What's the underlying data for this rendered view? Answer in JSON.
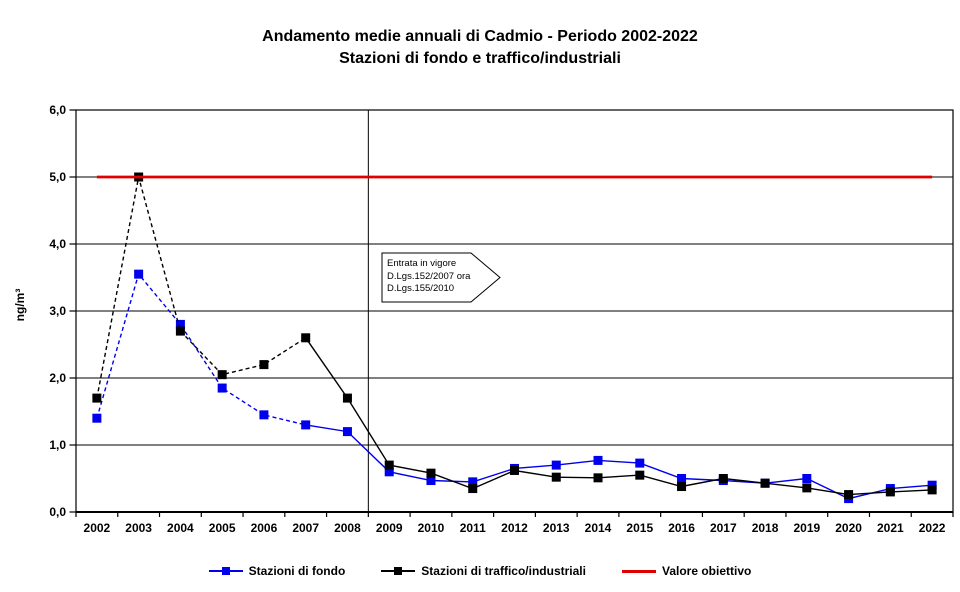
{
  "title": {
    "line1": "Andamento medie annuali di Cadmio - Periodo 2002-2022",
    "line2": "Stazioni di fondo e traffico/industriali"
  },
  "y_axis": {
    "label": "ng/m³",
    "ticks": [
      {
        "value": 6,
        "label": "6,0"
      },
      {
        "value": 5,
        "label": "5,0"
      },
      {
        "value": 4,
        "label": "4,0"
      },
      {
        "value": 3,
        "label": "3,0"
      },
      {
        "value": 2,
        "label": "2,0"
      },
      {
        "value": 1,
        "label": "1,0"
      },
      {
        "value": 0,
        "label": "0,0"
      }
    ]
  },
  "annotation": {
    "lines": [
      "Entrata in vigore",
      "D.Lgs.152/2007 ora",
      "D.Lgs.155/2010"
    ]
  },
  "legend": [
    {
      "label": "Stazioni di fondo",
      "color": "#0000ee",
      "marker": "square"
    },
    {
      "label": "Stazioni di traffico/industriali",
      "color": "#000000",
      "marker": "square"
    },
    {
      "label": "Valore obiettivo",
      "color": "#e00000",
      "marker": "line"
    }
  ],
  "chart_data": {
    "type": "line",
    "title": "Andamento medie annuali di Cadmio - Periodo 2002-2022 / Stazioni di fondo e traffico/industriali",
    "ylabel": "ng/m³",
    "ylim": [
      0,
      6
    ],
    "x": [
      "2002",
      "2003",
      "2004",
      "2005",
      "2006",
      "2007",
      "2008",
      "2009",
      "2010",
      "2011",
      "2012",
      "2013",
      "2014",
      "2015",
      "2016",
      "2017",
      "2018",
      "2019",
      "2020",
      "2021",
      "2022"
    ],
    "series": [
      {
        "name": "Stazioni di fondo",
        "color": "#0000ee",
        "dashed_until_index": 5,
        "values": [
          1.4,
          3.55,
          2.8,
          1.85,
          1.45,
          1.3,
          1.2,
          0.6,
          0.47,
          0.45,
          0.65,
          0.7,
          0.77,
          0.73,
          0.5,
          0.47,
          0.43,
          0.5,
          0.2,
          0.35,
          0.4
        ]
      },
      {
        "name": "Stazioni di traffico/industriali",
        "color": "#000000",
        "dashed_until_index": 5,
        "values": [
          1.7,
          5.0,
          2.7,
          2.05,
          2.2,
          2.6,
          1.7,
          0.7,
          0.58,
          0.35,
          0.62,
          0.52,
          0.51,
          0.55,
          0.38,
          0.5,
          0.43,
          0.36,
          0.26,
          0.3,
          0.33
        ]
      },
      {
        "name": "Valore obiettivo",
        "color": "#e00000",
        "constant_value": 5.0
      }
    ],
    "separator_line_between": [
      "2008",
      "2009"
    ],
    "grid": "horizontal",
    "legend_position": "bottom"
  }
}
